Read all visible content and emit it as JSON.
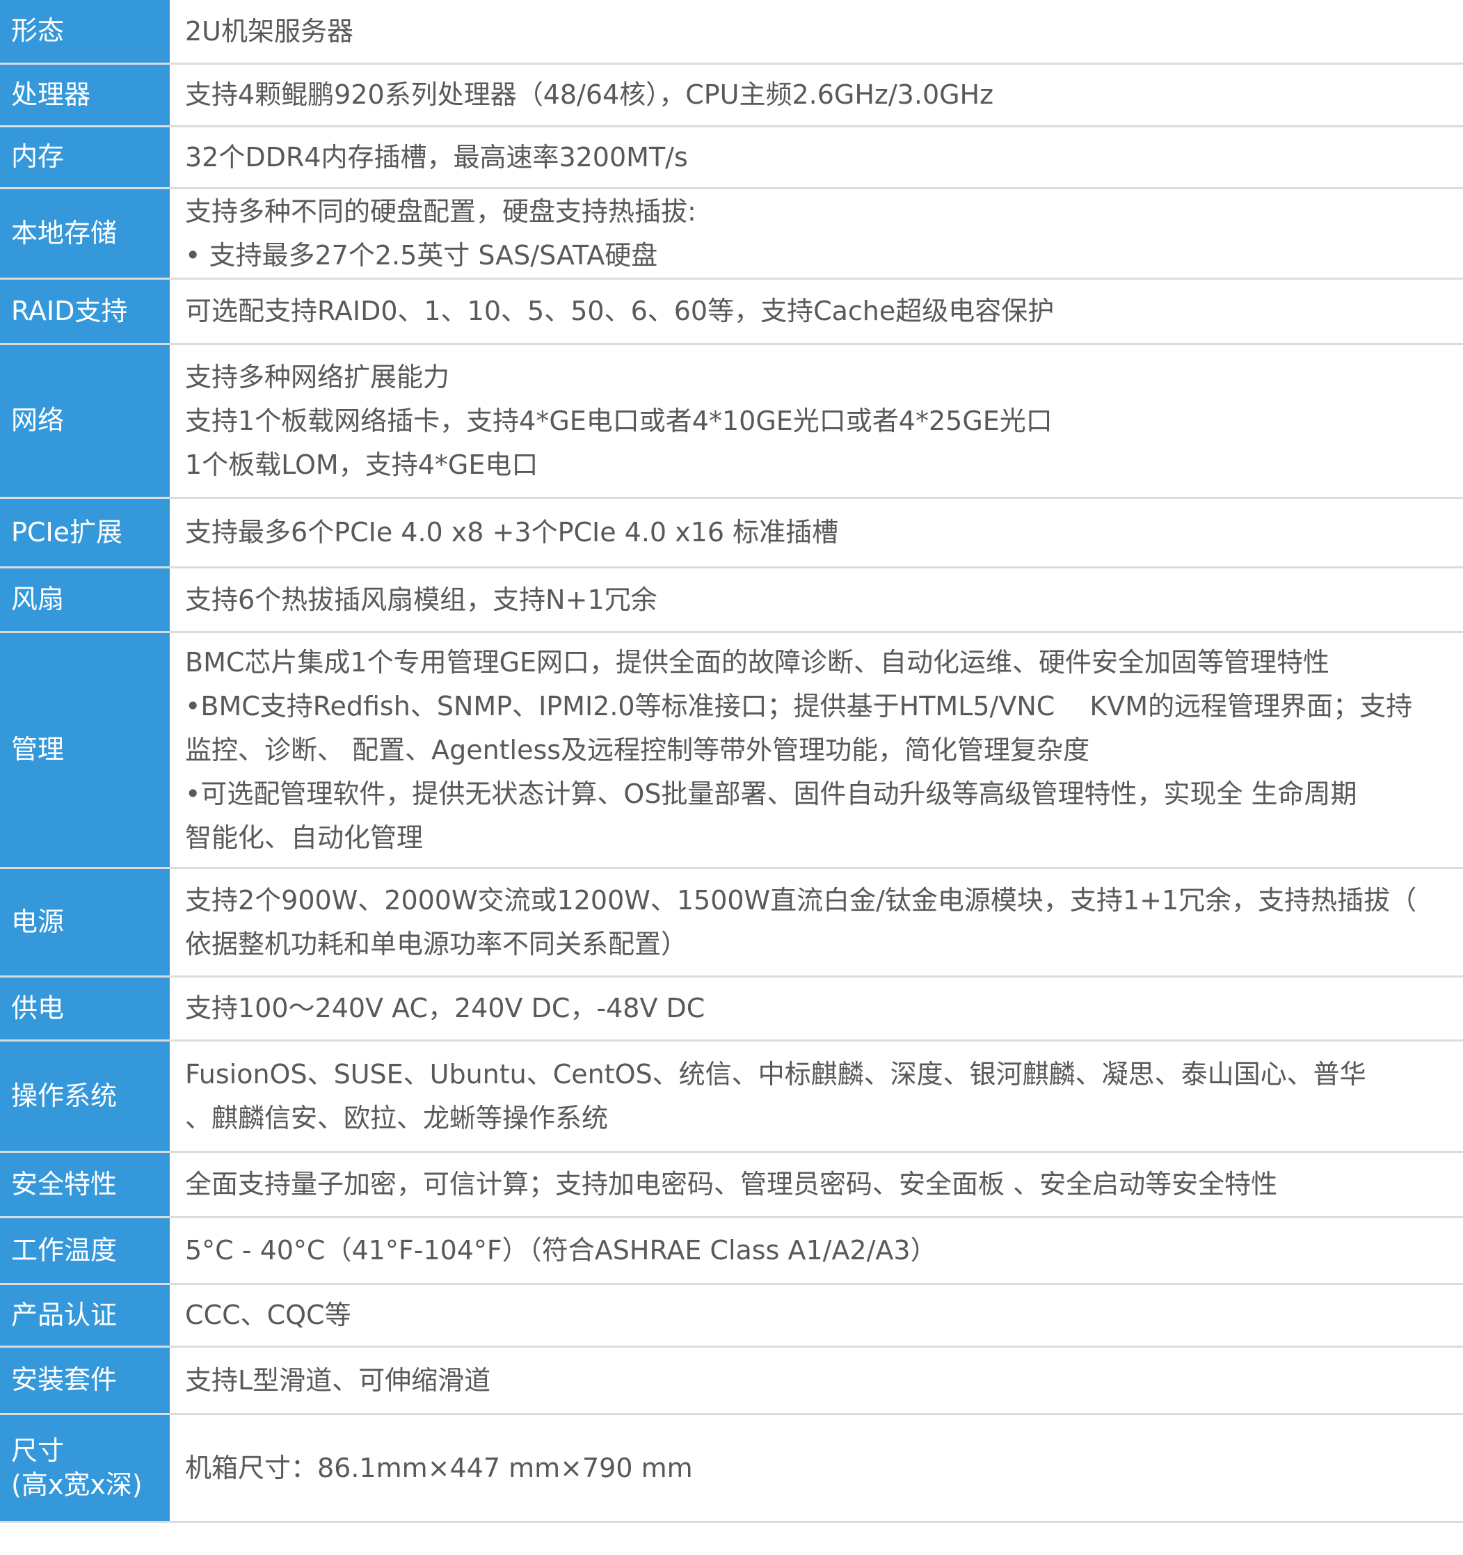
{
  "specs": [
    {
      "label": "形态",
      "lines": [
        "2U机架服务器"
      ]
    },
    {
      "label": "处理器",
      "lines": [
        "支持4颗鲲鹏920系列处理器（48/64核），CPU主频2.6GHz/3.0GHz"
      ]
    },
    {
      "label": "内存",
      "lines": [
        "32个DDR4内存插槽，最高速率3200MT/s"
      ]
    },
    {
      "label": "本地存储",
      "lines": [
        "支持多种不同的硬盘配置，硬盘支持热插拔:",
        "• 支持最多27个2.5英寸 SAS/SATA硬盘"
      ]
    },
    {
      "label": "RAID支持",
      "lines": [
        "可选配支持RAID0、1、10、5、50、6、60等，支持Cache超级电容保护"
      ]
    },
    {
      "label": "网络",
      "lines": [
        "支持多种网络扩展能力",
        "支持1个板载网络插卡，支持4*GE电口或者4*10GE光口或者4*25GE光口",
        "1个板载LOM，支持4*GE电口"
      ]
    },
    {
      "label": "PCIe扩展",
      "lines": [
        "支持最多6个PCIe 4.0 x8 +3个PCIe 4.0 x16 标准插槽"
      ]
    },
    {
      "label": "风扇",
      "lines": [
        "支持6个热拔插风扇模组，支持N+1冗余"
      ]
    },
    {
      "label": "管理",
      "lines": [
        "BMC芯片集成1个专用管理GE网口，提供全面的故障诊断、自动化运维、硬件安全加固等管理特性",
        "•BMC支持Redfish、SNMP、IPMI2.0等标准接口；提供基于HTML5/VNC　 KVM的远程管理界面；支持",
        "监控、诊断、 配置、Agentless及远程控制等带外管理功能，简化管理复杂度",
        "•可选配管理软件，提供无状态计算、OS批量部署、固件自动升级等高级管理特性，实现全  生命周期",
        "智能化、自动化管理"
      ]
    },
    {
      "label": "电源",
      "lines": [
        "支持2个900W、2000W交流或1200W、1500W直流白金/钛金电源模块，支持1+1冗余，支持热插拔（",
        "依据整机功耗和单电源功率不同关系配置）"
      ]
    },
    {
      "label": "供电",
      "lines": [
        "支持100～240V AC，240V DC，-48V DC"
      ]
    },
    {
      "label": "操作系统",
      "lines": [
        "FusionOS、SUSE、Ubuntu、CentOS、统信、中标麒麟、深度、银河麒麟、凝思、泰山国心、普华",
        "、麒麟信安、欧拉、龙蜥等操作系统"
      ]
    },
    {
      "label": "安全特性",
      "lines": [
        "全面支持量子加密，可信计算；支持加电密码、管理员密码、安全面板 、安全启动等安全特性"
      ]
    },
    {
      "label": "工作温度",
      "lines": [
        "5°C - 40°C（41°F-104°F）（符合ASHRAE Class A1/A2/A3）"
      ]
    },
    {
      "label": "产品认证",
      "lines": [
        "CCC、CQC等"
      ]
    },
    {
      "label": "安装套件",
      "lines": [
        "支持L型滑道、可伸缩滑道"
      ]
    },
    {
      "label": "尺寸\n(高x宽x深)",
      "lines": [
        "机箱尺寸：86.1mm×447 mm×790 mm"
      ]
    }
  ],
  "colors": {
    "label_bg": "#3598db",
    "text": "#595959",
    "divider": "#dcdcdc"
  }
}
